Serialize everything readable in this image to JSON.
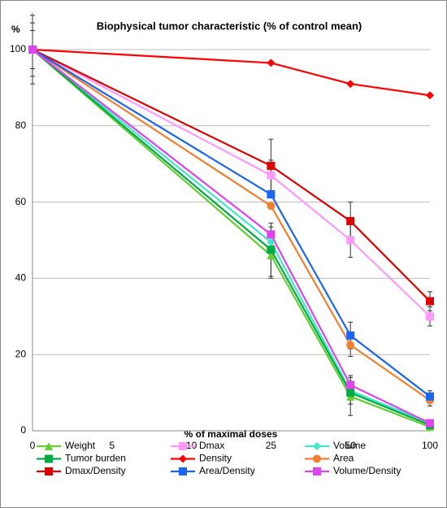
{
  "chart_data": {
    "type": "line",
    "title": "Biophysical tumor characteristic (% of control mean)",
    "x_label": "% of maximal doses",
    "y_label": "%",
    "categories": [
      "0",
      "5",
      "10",
      "25",
      "50",
      "100"
    ],
    "ylim": [
      0,
      100
    ],
    "yticks": [
      0,
      20,
      40,
      60,
      80,
      100
    ],
    "grid": true,
    "legend": "bottom",
    "series": [
      {
        "name": "Weight",
        "color": "#66cc33",
        "marker": "triangle",
        "values": [
          100,
          null,
          null,
          46,
          9,
          1
        ],
        "errors": [
          9,
          null,
          null,
          6,
          5,
          null
        ]
      },
      {
        "name": "Dmax",
        "color": "#ff99ff",
        "marker": "square",
        "values": [
          100,
          null,
          null,
          67,
          50,
          30
        ],
        "errors": [
          null,
          null,
          null,
          4,
          4.5,
          2.5
        ]
      },
      {
        "name": "Volume",
        "color": "#40e8c8",
        "marker": "diamond",
        "values": [
          100,
          null,
          null,
          49.5,
          10.5,
          2
        ],
        "errors": [
          5,
          null,
          null,
          null,
          null,
          null
        ]
      },
      {
        "name": "Tumor burden",
        "color": "#00aa44",
        "marker": "square",
        "values": [
          100,
          null,
          null,
          47.5,
          10,
          1.5
        ],
        "errors": [
          7,
          null,
          null,
          7,
          3,
          null
        ]
      },
      {
        "name": "Density",
        "color": "#ff0000",
        "marker": "diamond",
        "values": [
          100,
          null,
          null,
          96.5,
          91,
          88
        ],
        "errors": [
          null,
          null,
          null,
          null,
          null,
          null
        ]
      },
      {
        "name": "Area",
        "color": "#f08030",
        "marker": "circle",
        "values": [
          100,
          null,
          null,
          59,
          22.5,
          8
        ],
        "errors": [
          null,
          null,
          null,
          null,
          3,
          1.5
        ]
      },
      {
        "name": "Dmax/Density",
        "color": "#dd0000",
        "marker": "square",
        "values": [
          100,
          null,
          null,
          69.5,
          55,
          34
        ],
        "errors": [
          null,
          null,
          null,
          7,
          5,
          2.5
        ]
      },
      {
        "name": "Area/Density",
        "color": "#1a66ee",
        "marker": "square",
        "values": [
          100,
          null,
          null,
          62,
          25,
          9
        ],
        "errors": [
          null,
          null,
          null,
          null,
          3.5,
          1.5
        ]
      },
      {
        "name": "Volume/Density",
        "color": "#dd44ee",
        "marker": "square",
        "values": [
          100,
          null,
          null,
          51.5,
          12,
          2
        ],
        "errors": [
          null,
          null,
          null,
          2,
          2.5,
          null
        ]
      }
    ]
  }
}
